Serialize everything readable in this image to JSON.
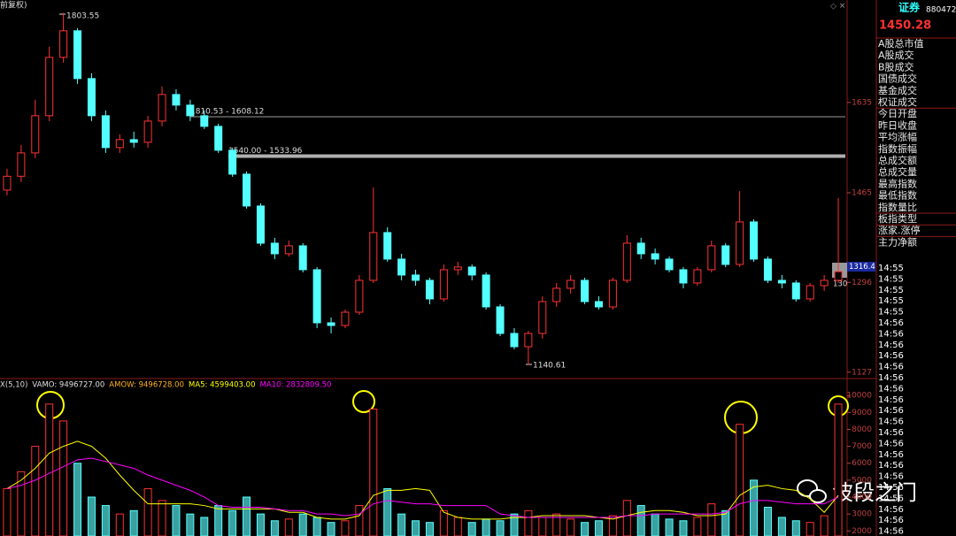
{
  "chart_data": [
    {
      "type": "candlestick",
      "title": "前复权)",
      "open": [
        1470,
        1496,
        1540,
        1610,
        1720,
        1770,
        1680,
        1610,
        1550,
        1565,
        1560,
        1600,
        1650,
        1630,
        1610,
        1590,
        1545,
        1500,
        1440,
        1370,
        1350,
        1365,
        1320,
        1220,
        1215,
        1240,
        1300,
        1390,
        1340,
        1310,
        1300,
        1265,
        1320,
        1325,
        1310,
        1250,
        1200,
        1175,
        1200,
        1260,
        1285,
        1300,
        1260,
        1250,
        1300,
        1370,
        1350,
        1340,
        1320,
        1295,
        1320,
        1365,
        1330,
        1410,
        1340,
        1300,
        1295,
        1265,
        1290,
        1300
      ],
      "high": [
        1510,
        1555,
        1640,
        1740,
        1803.55,
        1775,
        1690,
        1620,
        1575,
        1580,
        1610,
        1665,
        1660,
        1640,
        1620,
        1595,
        1550,
        1505,
        1445,
        1380,
        1375,
        1370,
        1325,
        1230,
        1245,
        1310,
        1475,
        1400,
        1350,
        1320,
        1305,
        1330,
        1335,
        1330,
        1315,
        1255,
        1210,
        1205,
        1270,
        1295,
        1310,
        1305,
        1270,
        1305,
        1385,
        1380,
        1360,
        1345,
        1325,
        1325,
        1375,
        1370,
        1468,
        1415,
        1345,
        1310,
        1300,
        1295,
        1310,
        1455
      ],
      "low": [
        1460,
        1485,
        1530,
        1600,
        1710,
        1670,
        1600,
        1540,
        1540,
        1550,
        1550,
        1590,
        1620,
        1600,
        1585,
        1540,
        1495,
        1435,
        1365,
        1340,
        1345,
        1315,
        1210,
        1200,
        1210,
        1235,
        1295,
        1335,
        1300,
        1290,
        1255,
        1260,
        1310,
        1300,
        1245,
        1195,
        1170,
        1140.61,
        1190,
        1250,
        1275,
        1255,
        1245,
        1245,
        1295,
        1340,
        1330,
        1315,
        1285,
        1290,
        1315,
        1325,
        1325,
        1335,
        1295,
        1285,
        1260,
        1260,
        1280,
        1295
      ],
      "close": [
        1496,
        1540,
        1610,
        1720,
        1770,
        1680,
        1610,
        1550,
        1565,
        1560,
        1600,
        1650,
        1630,
        1610,
        1590,
        1545,
        1500,
        1440,
        1370,
        1350,
        1365,
        1320,
        1220,
        1215,
        1240,
        1300,
        1390,
        1340,
        1310,
        1300,
        1265,
        1320,
        1325,
        1310,
        1250,
        1200,
        1175,
        1200,
        1260,
        1285,
        1300,
        1260,
        1250,
        1300,
        1370,
        1350,
        1340,
        1320,
        1295,
        1320,
        1365,
        1330,
        1410,
        1340,
        1300,
        1295,
        1265,
        1290,
        1300,
        1316.4
      ],
      "up_color": "#ff3232",
      "down_color": "#54ffff",
      "ylim": [
        1115,
        1828
      ],
      "yticks": [
        1127,
        1296,
        1465,
        1635
      ],
      "reference_lines": [
        {
          "value": 1608.12,
          "label": "1810.53 - 1608.12",
          "color": "#9a9a9a",
          "width": 1
        },
        {
          "value": 1533.96,
          "label": "1540.00 - 1533.96",
          "color": "#b0b0b0",
          "width": 4
        }
      ],
      "annotations": [
        "1803.55",
        "1140.61"
      ],
      "last_price_label": "1316.4",
      "last_price_sub": "130"
    },
    {
      "type": "bar",
      "title": "X(5,10)",
      "indicator_labels": [
        {
          "text": "VAMO: 9496727.00",
          "color": "#e0e0e0"
        },
        {
          "text": "AMOW: 9496728.00",
          "color": "#ffb020"
        }
      ],
      "values": [
        4500,
        5500,
        7000,
        9496,
        8500,
        6000,
        4000,
        3500,
        3000,
        3200,
        4500,
        3800,
        3500,
        3000,
        2800,
        3500,
        3200,
        4000,
        3000,
        2600,
        2700,
        3000,
        2800,
        2500,
        2600,
        3500,
        9200,
        4500,
        3000,
        2600,
        2500,
        3200,
        2800,
        2500,
        2700,
        2600,
        3000,
        3200,
        2800,
        3000,
        2700,
        2500,
        2600,
        2900,
        3800,
        3500,
        3000,
        2700,
        2600,
        2800,
        3600,
        3200,
        8300,
        5000,
        3400,
        2800,
        2600,
        2500,
        2900,
        9496
      ],
      "series": [
        {
          "name": "MA5: 4599403.00",
          "color": "#ffff00",
          "values": [
            4500,
            5000,
            5700,
            6600,
            7000,
            7300,
            7000,
            6300,
            5300,
            4400,
            3600,
            3600,
            3600,
            3600,
            3500,
            3300,
            3300,
            3300,
            3300,
            3300,
            3100,
            3100,
            2800,
            2700,
            2700,
            2900,
            4100,
            4400,
            4400,
            4500,
            4400,
            3100,
            2800,
            2700,
            2700,
            2700,
            2800,
            2800,
            2900,
            2900,
            2900,
            2900,
            2800,
            2700,
            2900,
            3100,
            3200,
            3200,
            3100,
            2900,
            2900,
            3000,
            4100,
            4600,
            4700,
            4500,
            4400,
            3900,
            3100,
            4100
          ]
        },
        {
          "name": "MA10: 2832809.50",
          "color": "#ff00ff",
          "values": [
            4500,
            4700,
            5000,
            5400,
            5800,
            6200,
            6300,
            6100,
            5900,
            5700,
            5300,
            5000,
            4700,
            4400,
            4000,
            3500,
            3400,
            3400,
            3400,
            3300,
            3200,
            3200,
            3000,
            3000,
            2900,
            3000,
            3600,
            3800,
            3700,
            3600,
            3600,
            3500,
            3500,
            3500,
            3500,
            3000,
            2900,
            2800,
            2800,
            2800,
            2800,
            2800,
            2800,
            2800,
            2900,
            2900,
            3000,
            3000,
            3000,
            3000,
            3000,
            3100,
            3600,
            3800,
            3800,
            3700,
            3600,
            3600,
            3600,
            4000
          ]
        }
      ],
      "ylim": [
        1700,
        10900
      ],
      "yticks": [
        2000,
        3000,
        4000,
        5000,
        6000,
        7000,
        8000,
        9000,
        10000
      ]
    }
  ],
  "side_panel": {
    "name": "证券",
    "code": "880472",
    "price": "1450.28",
    "items": [
      "A股总市值",
      "A股成交",
      "B股成交",
      "国债成交",
      "基金成交",
      "权证成交",
      "今日开盘",
      "昨日收盘",
      "平均涨幅",
      "指数振幅",
      "总成交额",
      "总成交量",
      "最高指数",
      "最低指数",
      "指数量比",
      "板指类型",
      "涨家.涨停",
      "主力净额"
    ],
    "times": [
      "14:55",
      "14:55",
      "14:55",
      "14:55",
      "14:55",
      "14:56",
      "14:56",
      "14:56",
      "14:56",
      "14:56",
      "14:56",
      "14:56",
      "14:56",
      "14:56",
      "14:56",
      "14:56",
      "14:56",
      "14:56",
      "14:56",
      "14:56",
      "14:56",
      "14:56",
      "14:56",
      "14:56",
      "14:56"
    ]
  },
  "watermark": "波段之门"
}
